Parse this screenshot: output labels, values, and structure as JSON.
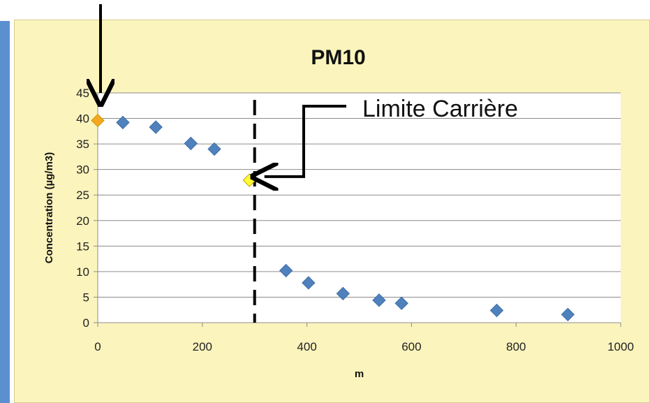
{
  "chart_data": {
    "type": "scatter",
    "title": "PM10",
    "xlabel": "m",
    "ylabel": "Concentration (µg/m3)",
    "xlim": [
      0,
      1000
    ],
    "ylim": [
      0,
      45
    ],
    "x_ticks": [
      0,
      200,
      400,
      600,
      800,
      1000
    ],
    "y_ticks": [
      0,
      5,
      10,
      15,
      20,
      25,
      30,
      35,
      40,
      45
    ],
    "grid": "horizontal",
    "series": [
      {
        "color": "#4f81bd",
        "marker": "diamond",
        "x": [
          48,
          111,
          178,
          223,
          360,
          403,
          469,
          538,
          581,
          763,
          899
        ],
        "y": [
          39.2,
          38.3,
          35.1,
          34.0,
          10.2,
          7.8,
          5.7,
          4.4,
          3.8,
          2.4,
          1.6
        ]
      },
      {
        "color": "#f5a623",
        "marker": "diamond",
        "x": [
          0
        ],
        "y": [
          39.6
        ]
      },
      {
        "color": "#ffff33",
        "marker": "diamond",
        "x": [
          290
        ],
        "y": [
          27.9
        ]
      }
    ],
    "boundary_x": 300,
    "annotations": [
      {
        "text": "Limite Carrière"
      }
    ]
  }
}
